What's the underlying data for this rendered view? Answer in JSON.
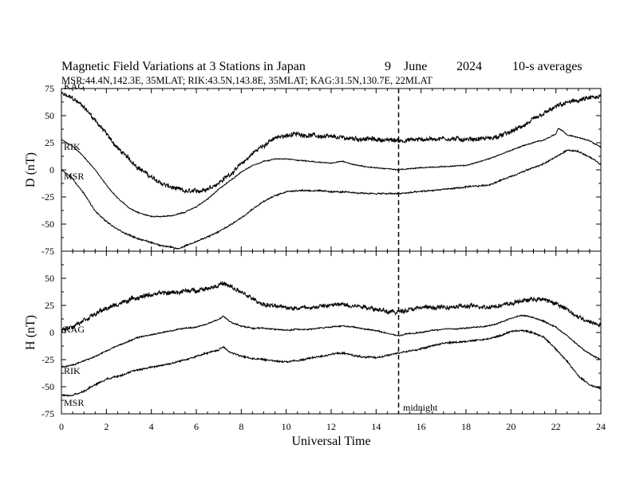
{
  "title": {
    "main": "Magnetic Field Variations at 3 Stations in Japan",
    "day": "9",
    "month": "June",
    "year": "2024",
    "avg": "10-s averages",
    "subtitle": "MSR:44.4N,142.3E, 35MLAT;  RIK:43.5N,143.8E, 35MLAT;  KAG:31.5N,130.7E, 22MLAT"
  },
  "xlabel": "Universal Time",
  "midnight_label": "midnight",
  "chart_data": [
    {
      "type": "line",
      "panel": "top",
      "ylabel": "D (nT)",
      "xlim": [
        0,
        24
      ],
      "ylim": [
        -75,
        75
      ],
      "yticks": [
        "75",
        "50",
        "25",
        "0",
        "-25",
        "-50",
        "-75"
      ],
      "xticks": [
        "0",
        "2",
        "4",
        "6",
        "8",
        "10",
        "12",
        "14",
        "16",
        "18",
        "20",
        "22",
        "24"
      ],
      "midnight_ut": 15,
      "series": [
        {
          "name": "KAG",
          "noise": 1.8,
          "x": [
            0,
            0.5,
            1,
            1.5,
            2,
            2.5,
            3,
            3.5,
            4,
            4.5,
            5,
            5.5,
            6,
            6.5,
            7,
            7.5,
            8,
            8.5,
            9,
            9.5,
            10,
            10.5,
            11,
            11.5,
            12,
            13,
            14,
            15,
            16,
            17,
            18,
            19,
            19.5,
            20,
            20.5,
            21,
            21.5,
            22,
            22.5,
            23,
            23.5,
            24
          ],
          "y": [
            70,
            66,
            58,
            46,
            33,
            20,
            10,
            1,
            -7,
            -13,
            -17,
            -20,
            -20,
            -17,
            -12,
            -4,
            5,
            15,
            23,
            29,
            32,
            33,
            32,
            31,
            30,
            29,
            28,
            27,
            28,
            29,
            28,
            29,
            31,
            35,
            40,
            46,
            52,
            58,
            62,
            64,
            66,
            67
          ]
        },
        {
          "name": "RIK",
          "noise": 0.4,
          "x": [
            0,
            0.5,
            1,
            1.5,
            2,
            2.5,
            3,
            3.5,
            4,
            4.5,
            5,
            5.5,
            6,
            6.5,
            7,
            7.5,
            8,
            8.5,
            9,
            9.5,
            10,
            10.5,
            11,
            12,
            12.5,
            13,
            13.5,
            14,
            15,
            15.5,
            16,
            17,
            18,
            19,
            19.5,
            20,
            20.5,
            21,
            21.5,
            22,
            22.1,
            22.3,
            22.5,
            23,
            23.5,
            24
          ],
          "y": [
            28,
            22,
            12,
            0,
            -14,
            -26,
            -35,
            -40,
            -43,
            -43,
            -42,
            -39,
            -34,
            -27,
            -18,
            -10,
            -2,
            4,
            8,
            10,
            10,
            9,
            8,
            6,
            8,
            5,
            3,
            2,
            0,
            1,
            2,
            3,
            4,
            10,
            14,
            18,
            22,
            25,
            28,
            33,
            38,
            36,
            32,
            30,
            27,
            21
          ]
        },
        {
          "name": "MSR",
          "noise": 0.6,
          "x": [
            0,
            0.5,
            1,
            1.5,
            2,
            2.5,
            3,
            3.5,
            4,
            4.5,
            5,
            5.2,
            5.5,
            6,
            6.5,
            7,
            7.5,
            8,
            8.5,
            9,
            9.5,
            10,
            10.5,
            11,
            12,
            13,
            14,
            15,
            16,
            17,
            18,
            19,
            19.5,
            20,
            20.5,
            21,
            21.5,
            22,
            22.5,
            23,
            23.5,
            24
          ],
          "y": [
            0,
            -8,
            -22,
            -38,
            -48,
            -55,
            -60,
            -64,
            -67,
            -70,
            -72,
            -73,
            -70,
            -66,
            -62,
            -57,
            -51,
            -44,
            -36,
            -29,
            -24,
            -20,
            -19,
            -19,
            -20,
            -21,
            -22,
            -22,
            -20,
            -18,
            -16,
            -14,
            -10,
            -6,
            -2,
            2,
            6,
            12,
            18,
            17,
            12,
            5
          ]
        }
      ]
    },
    {
      "type": "line",
      "panel": "bottom",
      "ylabel": "H (nT)",
      "xlim": [
        0,
        24
      ],
      "ylim": [
        -75,
        75
      ],
      "yticks": [
        "",
        "50",
        "25",
        "0",
        "-25",
        "-50",
        "-75"
      ],
      "xticks": [
        "0",
        "2",
        "4",
        "6",
        "8",
        "10",
        "12",
        "14",
        "16",
        "18",
        "20",
        "22",
        "24"
      ],
      "midnight_ut": 15,
      "series": [
        {
          "name": "KAG",
          "noise": 1.8,
          "x": [
            0,
            0.5,
            1,
            1.5,
            2,
            2.5,
            3,
            3.5,
            4,
            4.5,
            5,
            5.5,
            6,
            6.5,
            7,
            7.2,
            7.5,
            8,
            8.5,
            9,
            9.5,
            10,
            10.5,
            11,
            11.5,
            12,
            12.5,
            13,
            13.5,
            14,
            14.5,
            15,
            15.5,
            16,
            17,
            18,
            19,
            19.5,
            20,
            20.5,
            21,
            21.5,
            22,
            22.5,
            23,
            23.5,
            24
          ],
          "y": [
            2,
            6,
            12,
            17,
            22,
            26,
            30,
            33,
            35,
            36,
            37,
            38,
            39,
            41,
            44,
            45,
            42,
            37,
            31,
            26,
            24,
            23,
            23,
            23,
            24,
            25,
            26,
            25,
            24,
            22,
            19,
            19,
            22,
            23,
            23,
            24,
            24,
            25,
            27,
            29,
            31,
            30,
            27,
            21,
            14,
            10,
            8
          ]
        },
        {
          "name": "RIK",
          "noise": 0.5,
          "x": [
            0,
            0.5,
            1,
            1.5,
            2,
            2.5,
            3,
            3.5,
            4,
            4.5,
            5,
            5.5,
            6,
            6.5,
            7,
            7.2,
            7.5,
            8,
            8.5,
            9,
            9.5,
            10,
            10.5,
            11,
            11.5,
            12,
            12.5,
            13,
            13.5,
            14,
            14.5,
            15,
            15.5,
            16,
            16.5,
            17,
            18,
            19,
            19.5,
            20,
            20.5,
            21,
            21.5,
            22,
            22.5,
            23,
            23.5,
            24
          ],
          "y": [
            -32,
            -30,
            -26,
            -22,
            -17,
            -12,
            -8,
            -4,
            -2,
            0,
            2,
            4,
            5,
            8,
            12,
            15,
            10,
            6,
            4,
            4,
            3,
            2,
            3,
            3,
            4,
            5,
            6,
            5,
            3,
            2,
            -1,
            -3,
            -1,
            0,
            2,
            3,
            4,
            6,
            9,
            13,
            16,
            14,
            10,
            5,
            -3,
            -12,
            -20,
            -25
          ]
        },
        {
          "name": "MSR",
          "noise": 0.7,
          "x": [
            0,
            0.5,
            1,
            1.5,
            2,
            2.5,
            3,
            3.5,
            4,
            4.5,
            5,
            5.5,
            6,
            6.5,
            7,
            7.2,
            7.5,
            8,
            8.5,
            9,
            9.5,
            10,
            10.5,
            11,
            11.5,
            12,
            12.5,
            13,
            13.5,
            14,
            14.5,
            15,
            15.5,
            16,
            16.5,
            17,
            18,
            19,
            19.5,
            20,
            20.5,
            21,
            21.5,
            22,
            22.5,
            23,
            23.5,
            24
          ],
          "y": [
            -58,
            -58,
            -54,
            -48,
            -43,
            -40,
            -37,
            -34,
            -32,
            -30,
            -28,
            -25,
            -22,
            -19,
            -16,
            -13,
            -18,
            -22,
            -24,
            -25,
            -26,
            -27,
            -26,
            -24,
            -22,
            -20,
            -19,
            -21,
            -23,
            -23,
            -21,
            -19,
            -17,
            -15,
            -12,
            -10,
            -8,
            -6,
            -3,
            1,
            2,
            0,
            -5,
            -15,
            -27,
            -40,
            -48,
            -52
          ]
        }
      ]
    }
  ]
}
